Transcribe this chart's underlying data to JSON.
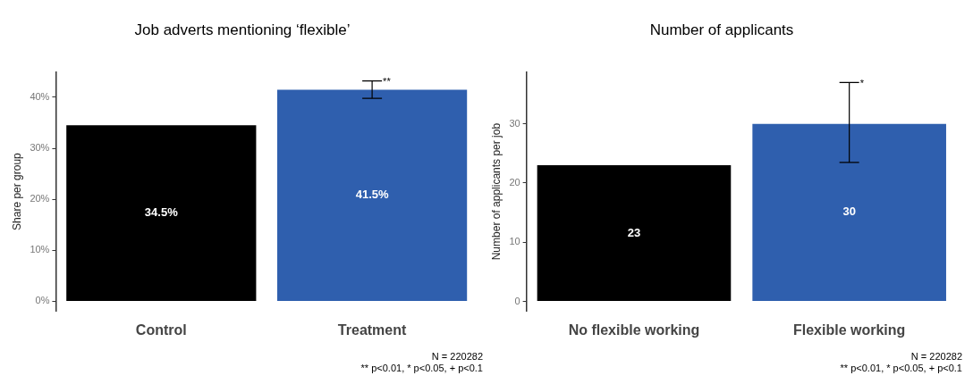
{
  "chart_data": [
    {
      "type": "bar",
      "title": "Job adverts mentioning ‘flexible’",
      "ylabel": "Share per group",
      "categories": [
        "Control",
        "Treatment"
      ],
      "values": [
        34.5,
        41.5
      ],
      "colors": [
        "#000000",
        "#2f5fae"
      ],
      "value_labels": [
        "34.5%",
        "41.5%"
      ],
      "errors": [
        null,
        [
          39.8,
          43.2
        ]
      ],
      "ylim": [
        -2,
        45
      ],
      "yticks": [
        {
          "value": 0,
          "label": "0%"
        },
        {
          "value": 10,
          "label": "10%"
        },
        {
          "value": 20,
          "label": "20%"
        },
        {
          "value": 30,
          "label": "30%"
        },
        {
          "value": 40,
          "label": "40%"
        }
      ],
      "grid": false,
      "legend": false,
      "annotations": [
        {
          "text": "**",
          "x": "Treatment",
          "y": 43.2
        },
        "N = 220282",
        "** p<0.01, * p<0.05, + p<0.1"
      ]
    },
    {
      "type": "bar",
      "title": "Number of applicants",
      "ylabel": "Number of applicants per job",
      "categories": [
        "No flexible working",
        "Flexible working"
      ],
      "values": [
        23,
        30
      ],
      "colors": [
        "#000000",
        "#2f5fae"
      ],
      "data_labels": true,
      "errors": [
        null,
        [
          23.5,
          37
        ]
      ],
      "ylim": [
        -1.7,
        38.8
      ],
      "yticks": [
        0,
        10,
        20,
        30
      ],
      "grid": false,
      "legend": false,
      "annotations": [
        {
          "text": "*",
          "x": "Flexible working",
          "y": 37
        },
        "N = 220282",
        "** p<0.01, * p<0.05, + p<0.1"
      ]
    }
  ]
}
